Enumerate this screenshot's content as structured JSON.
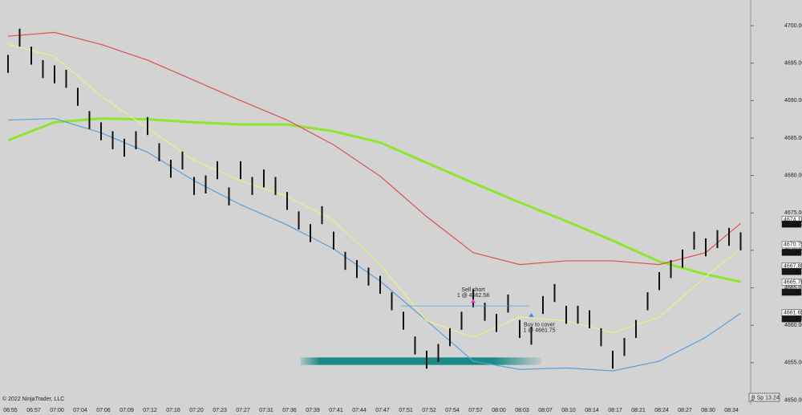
{
  "chart_data": {
    "type": "ohlc",
    "categories": [
      "06:55",
      null,
      "06:57",
      null,
      "07:00",
      null,
      "07:04",
      null,
      "07:06",
      null,
      "07:09",
      null,
      "07:12",
      null,
      "07:16",
      null,
      "07:20",
      null,
      "07:23",
      null,
      "07:27",
      null,
      "07:31",
      null,
      "07:36",
      null,
      "07:39",
      null,
      "07:41",
      null,
      "07:44",
      null,
      "07:47",
      null,
      "07:51",
      null,
      "07:52",
      null,
      "07:54",
      null,
      "07:57",
      null,
      "08:00",
      null,
      "08:03",
      null,
      "08:07",
      null,
      "08:10",
      null,
      "08:14",
      null,
      "08:17",
      null,
      "08:21",
      null,
      "08:24",
      null,
      "08:27",
      null,
      "08:30",
      null,
      "08:34",
      null
    ],
    "high": [
      4696.1,
      4699.6,
      4697.2,
      4695.4,
      4694.7,
      4694.1,
      4691.7,
      4688.6,
      4687.1,
      4685.9,
      4684.9,
      4685.9,
      4687.8,
      4684.3,
      4682.1,
      4683.2,
      4679.8,
      4680.0,
      4681.9,
      4678.4,
      4681.9,
      4679.8,
      4680.8,
      4679.8,
      4677.8,
      4675.2,
      4673.5,
      4675.9,
      4672.5,
      4669.8,
      4668.7,
      4667.7,
      4666.6,
      4664.4,
      4661.8,
      4658.5,
      4656.6,
      4657.5,
      4659.6,
      4661.8,
      4664.8,
      4663.0,
      4661.5,
      4664.1,
      4660.7,
      4659.8,
      4663.9,
      4665.5,
      4662.6,
      4662.6,
      4662.0,
      4659.6,
      4656.6,
      4658.3,
      4660.7,
      4664.4,
      4667.1,
      4668.7,
      4670.1,
      4672.5,
      4671.6,
      4672.7,
      4673.0,
      4672.4
    ],
    "low": [
      4693.7,
      4697.2,
      4694.8,
      4693.0,
      4692.3,
      4691.7,
      4689.3,
      4686.2,
      4684.7,
      4683.5,
      4682.5,
      4683.5,
      4685.4,
      4681.9,
      4679.7,
      4680.8,
      4677.4,
      4677.6,
      4679.5,
      4676.0,
      4679.5,
      4677.4,
      4678.4,
      4677.4,
      4675.4,
      4672.8,
      4671.1,
      4673.5,
      4670.1,
      4667.4,
      4666.3,
      4665.3,
      4664.2,
      4662.0,
      4659.4,
      4656.1,
      4654.2,
      4655.1,
      4657.2,
      4659.4,
      4662.4,
      4660.6,
      4659.1,
      4661.7,
      4658.3,
      4657.4,
      4661.5,
      4663.1,
      4660.2,
      4660.2,
      4659.6,
      4657.2,
      4654.2,
      4655.9,
      4658.3,
      4662.0,
      4664.7,
      4666.3,
      4667.7,
      4670.1,
      4669.2,
      4670.3,
      4670.6,
      4670.0
    ],
    "bar_color": "#111111",
    "indicator_x": [
      0,
      4,
      8,
      12,
      16,
      20,
      24,
      28,
      32,
      36,
      40,
      44,
      48,
      52,
      56,
      60,
      63
    ],
    "indicators": [
      {
        "color": "#8ee62c",
        "width": 3,
        "values": [
          4684.7,
          4687.1,
          4687.6,
          4687.5,
          4687.1,
          4686.8,
          4686.8,
          4685.9,
          4684.4,
          4681.7,
          4679.0,
          4676.4,
          4673.9,
          4671.3,
          4668.5,
          4666.8,
          4665.8
        ]
      },
      {
        "color": "#e05050",
        "width": 1.2,
        "values": [
          4698.6,
          4699.1,
          4697.5,
          4695.4,
          4692.7,
          4690.0,
          4687.4,
          4684.1,
          4679.9,
          4674.5,
          4669.7,
          4668.1,
          4668.6,
          4668.6,
          4668.1,
          4669.7,
          4673.6
        ]
      },
      {
        "color": "#5a9ee0",
        "width": 1.2,
        "values": [
          4687.4,
          4687.6,
          4685.7,
          4683.1,
          4679.3,
          4676.1,
          4673.4,
          4670.2,
          4665.9,
          4660.6,
          4655.2,
          4654.1,
          4654.3,
          4653.9,
          4655.2,
          4658.4,
          4661.6
        ]
      },
      {
        "color": "#eeee88",
        "width": 1.2,
        "values": [
          4697.5,
          4695.9,
          4690.6,
          4686.3,
          4682.0,
          4679.3,
          4677.2,
          4674.0,
          4668.1,
          4660.6,
          4658.4,
          4661.1,
          4660.6,
          4659.0,
          4661.1,
          4666.5,
          4670.2
        ]
      }
    ],
    "zone": {
      "high": 4655.7,
      "low": 4654.7,
      "color": "#1a8a86"
    },
    "trades": [
      {
        "label": "Sell short",
        "detail": "1 @ 4662.58",
        "price": 4662.58,
        "bar": 40,
        "color": "#ff33cc"
      },
      {
        "label": "Buy to cover",
        "detail": "1 @ 4661.75",
        "price": 4661.75,
        "bar": 45,
        "color": "#3388ff"
      }
    ],
    "ylim": [
      4649.3,
      4703.43
    ],
    "yticks": [
      {
        "value": 4650,
        "label": "4650.00"
      },
      {
        "value": 4655,
        "label": "4655.00"
      },
      {
        "value": 4660,
        "label": "4660.00"
      },
      {
        "value": 4665,
        "label": "4665.00"
      },
      {
        "value": 4670,
        "label": "4670.00"
      },
      {
        "value": 4675,
        "label": "4675.00"
      },
      {
        "value": 4680,
        "label": "4680.00"
      },
      {
        "value": 4685,
        "label": "4685.00"
      },
      {
        "value": 4690,
        "label": "4690.00"
      },
      {
        "value": 4695,
        "label": "4695.00"
      },
      {
        "value": 4700,
        "label": "4700.00"
      }
    ],
    "price_markers": [
      {
        "value": 4674.12,
        "label": "4674.12"
      },
      {
        "value": 4673.5,
        "label": "4673.50"
      },
      {
        "value": 4670.75,
        "label": "4670.75"
      },
      {
        "value": 4669.73,
        "label": "4669.73"
      },
      {
        "value": 4667.89,
        "label": "4667.89"
      },
      {
        "value": 4667.17,
        "label": "4667.17"
      },
      {
        "value": 4665.76,
        "label": "4665.76"
      },
      {
        "value": 4664.41,
        "label": "4664.41"
      },
      {
        "value": 4661.65,
        "label": "4661.65"
      },
      {
        "value": 4660.86,
        "label": "4660.86"
      }
    ],
    "copyright": "© 2022 NinjaTrader, LLC",
    "status": "B Sp 13.24"
  }
}
